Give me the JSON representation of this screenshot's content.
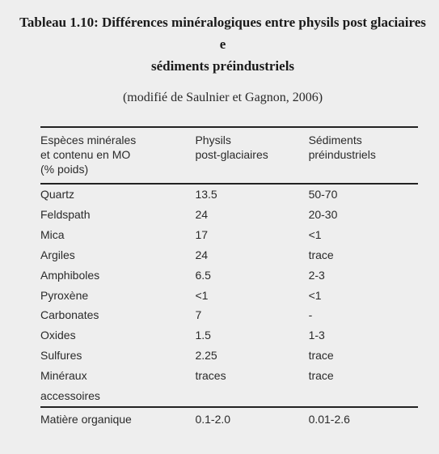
{
  "title_line1": "Tableau 1.10: Différences minéralogiques entre physils post glaciaires e",
  "title_line2": "sédiments préindustriels",
  "subtitle": "(modifié de Saulnier et Gagnon, 2006)",
  "headers": {
    "col0_line1": "Espèces minérales",
    "col0_line2": "et contenu en MO",
    "col0_line3": "(% poids)",
    "col1_line1": "Physils",
    "col1_line2": "post-glaciaires",
    "col2_line1": "Sédiments",
    "col2_line2": "préindustriels"
  },
  "rows": [
    {
      "c0": "Quartz",
      "c1": "13.5",
      "c2": "50-70"
    },
    {
      "c0": "Feldspath",
      "c1": "24",
      "c2": "20-30"
    },
    {
      "c0": "Mica",
      "c1": "17",
      "c2": "<1"
    },
    {
      "c0": "Argiles",
      "c1": "24",
      "c2": "trace"
    },
    {
      "c0": "Amphiboles",
      "c1": "6.5",
      "c2": "2-3"
    },
    {
      "c0": "Pyroxène",
      "c1": "<1",
      "c2": "<1"
    },
    {
      "c0": "Carbonates",
      "c1": "7",
      "c2": "-"
    },
    {
      "c0": "Oxides",
      "c1": "1.5",
      "c2": "1-3"
    },
    {
      "c0": "Sulfures",
      "c1": "2.25",
      "c2": "trace"
    },
    {
      "c0": "Minéraux",
      "c1": "traces",
      "c2": "trace"
    },
    {
      "c0": "accessoires",
      "c1": "",
      "c2": ""
    }
  ],
  "lastrow": {
    "c0": "Matière organique",
    "c1": "0.1-2.0",
    "c2": "0.01-2.6"
  }
}
